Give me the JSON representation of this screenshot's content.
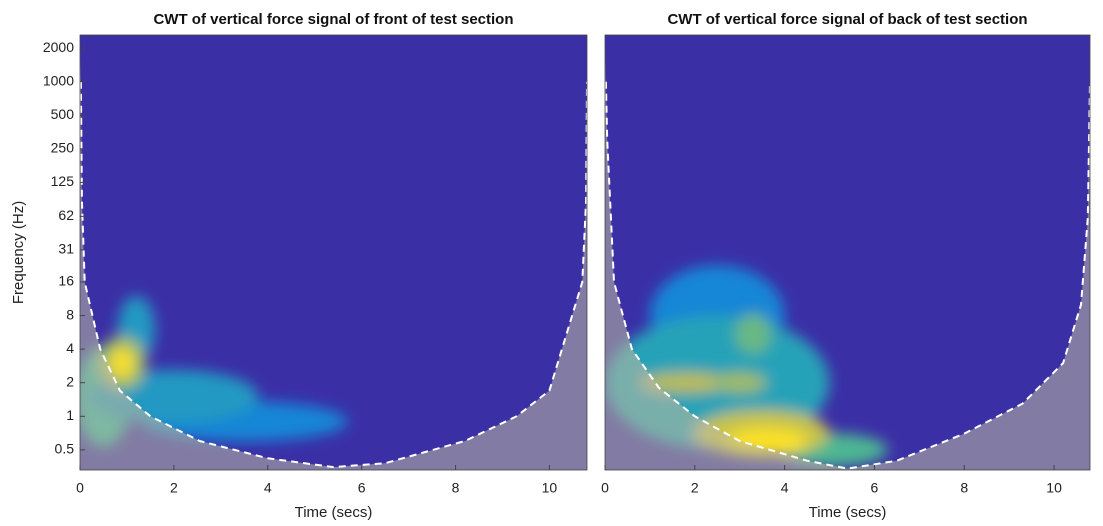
{
  "chart_data": [
    {
      "type": "scalogram",
      "title": "CWT of vertical force signal of front of test section",
      "xlabel": "Time (secs)",
      "ylabel": "Frequency (Hz)",
      "xlim": [
        0,
        10.8
      ],
      "xticks": [
        0,
        2,
        4,
        6,
        8,
        10
      ],
      "ylim": [
        0.33,
        2620
      ],
      "ylog": true,
      "yticks": [
        0.5,
        1,
        2,
        4,
        8,
        16,
        31,
        62,
        125,
        250,
        500,
        1000,
        2000
      ],
      "background": "#3b2fa6",
      "coi": {
        "x": [
          0.02,
          0.04,
          0.1,
          0.43,
          0.85,
          1.5,
          2.55,
          4,
          5.4,
          6.5,
          8.2,
          9.3,
          10,
          10.7,
          10.78,
          10.8
        ],
        "values": [
          1000,
          87,
          16,
          4,
          1.7,
          1,
          0.6,
          0.42,
          0.35,
          0.38,
          0.6,
          1,
          1.7,
          16,
          87,
          1000
        ]
      },
      "hotspots": {
        "t": [
          0.5,
          3.5,
          2.0,
          1.2,
          0.9,
          0.9
        ],
        "f": [
          1.5,
          0.9,
          1.5,
          6,
          3,
          3
        ],
        "dt": [
          0.6,
          2.2,
          1.8,
          0.4,
          0.5,
          0.25
        ],
        "df": [
          1.5,
          0.6,
          0.8,
          1.0,
          0.8,
          0.45
        ],
        "level": [
          0.5,
          0.25,
          0.35,
          0.35,
          0.7,
          1.0
        ]
      }
    },
    {
      "type": "scalogram",
      "title": "CWT of vertical force signal of back of test section",
      "xlabel": "Time (secs)",
      "xlim": [
        0,
        10.8
      ],
      "xticks": [
        0,
        2,
        4,
        6,
        8,
        10
      ],
      "ylim": [
        0.33,
        2620
      ],
      "ylog": true,
      "background": "#3b2fa6",
      "coi": {
        "x": [
          0.02,
          0.05,
          0.2,
          0.6,
          1.2,
          2,
          3,
          4.5,
          5.4,
          6.5,
          8,
          9.3,
          10.2,
          10.6,
          10.75,
          10.8
        ],
        "values": [
          1000,
          300,
          16,
          4,
          1.8,
          1,
          0.6,
          0.4,
          0.34,
          0.4,
          0.7,
          1.3,
          3,
          10,
          60,
          1000
        ]
      },
      "hotspots": {
        "t": [
          2.5,
          2.5,
          5,
          1.8,
          3.0,
          3.3,
          3.5,
          3.6
        ],
        "f": [
          8,
          2,
          0.5,
          2,
          2,
          5.5,
          0.7,
          0.6
        ],
        "dt": [
          1.5,
          2.5,
          1.3,
          1.0,
          0.6,
          0.4,
          1.5,
          0.9
        ],
        "df": [
          1.5,
          2,
          0.5,
          0.3,
          0.3,
          0.6,
          0.7,
          0.4
        ],
        "level": [
          0.25,
          0.4,
          0.55,
          0.75,
          0.7,
          0.6,
          0.8,
          1.0
        ]
      }
    }
  ]
}
